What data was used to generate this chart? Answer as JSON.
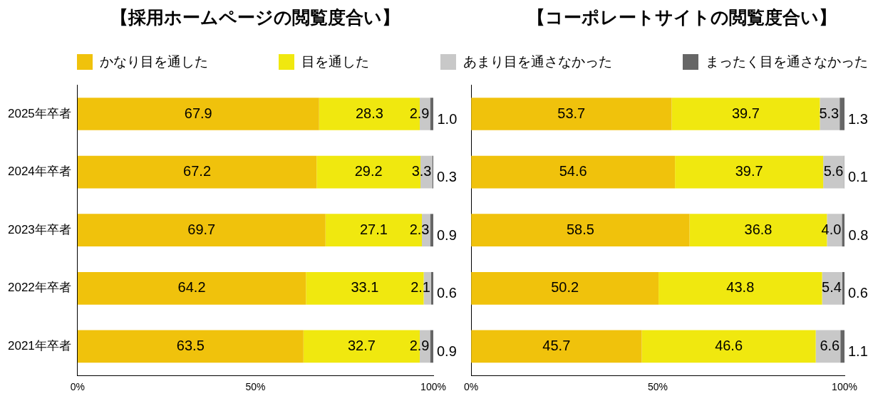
{
  "chart_data": [
    {
      "type": "bar",
      "orientation": "horizontal",
      "stacked": true,
      "title": "【採用ホームページの閲覧度合い】",
      "legend": "top",
      "grid": false,
      "categories": [
        "2025年卒者",
        "2024年卒者",
        "2023年卒者",
        "2022年卒者",
        "2021年卒者"
      ],
      "xlim": [
        0,
        100
      ],
      "xticks": [
        {
          "value": 0,
          "label": "0%"
        },
        {
          "value": 50,
          "label": "50%"
        },
        {
          "value": 100,
          "label": "100%"
        }
      ],
      "series": [
        {
          "name": "かなり目を通した",
          "color": "#f0c20c",
          "values": [
            67.9,
            67.2,
            69.7,
            64.2,
            63.5
          ],
          "value_labels": [
            "67.9",
            "67.2",
            "69.7",
            "64.2",
            "63.5"
          ]
        },
        {
          "name": "目を通した",
          "color": "#f0e80f",
          "values": [
            28.3,
            29.2,
            27.1,
            33.1,
            32.7
          ],
          "value_labels": [
            "28.3",
            "29.2",
            "27.1",
            "33.1",
            "32.7"
          ]
        },
        {
          "name": "あまり目を通さなかった",
          "color": "#c8c8c8",
          "values": [
            2.9,
            3.3,
            2.3,
            2.1,
            2.9
          ],
          "value_labels": [
            "2.9",
            "3.3",
            "2.3",
            "2.1",
            "2.9"
          ]
        },
        {
          "name": "まったく目を通さなかった",
          "color": "#666666",
          "values": [
            1.0,
            0.3,
            0.9,
            0.6,
            0.9
          ],
          "value_labels": [
            "1.0",
            "0.3",
            "0.9",
            "0.6",
            "0.9"
          ]
        }
      ]
    },
    {
      "type": "bar",
      "orientation": "horizontal",
      "stacked": true,
      "title": "【コーポレートサイトの閲覧度合い】",
      "grid": false,
      "categories": [
        null,
        null,
        null,
        null,
        null
      ],
      "xlim": [
        0,
        100
      ],
      "xticks": [
        {
          "value": 0,
          "label": "0%"
        },
        {
          "value": 50,
          "label": "50%"
        },
        {
          "value": 100,
          "label": "100%"
        }
      ],
      "series": [
        {
          "color": "#f0c20c",
          "values": [
            53.7,
            54.6,
            58.5,
            50.2,
            45.7
          ],
          "value_labels": [
            "53.7",
            "54.6",
            "58.5",
            "50.2",
            "45.7"
          ]
        },
        {
          "color": "#f0e80f",
          "values": [
            39.7,
            39.7,
            36.8,
            43.8,
            46.6
          ],
          "value_labels": [
            "39.7",
            "39.7",
            "36.8",
            "43.8",
            "46.6"
          ]
        },
        {
          "color": "#c8c8c8",
          "values": [
            5.3,
            5.6,
            4.0,
            5.4,
            6.6
          ],
          "value_labels": [
            "5.3",
            "5.6",
            "4.0",
            "5.4",
            "6.6"
          ]
        },
        {
          "color": "#666666",
          "values": [
            1.3,
            0.1,
            0.8,
            0.6,
            1.1
          ],
          "value_labels": [
            "1.3",
            "0.1",
            "0.8",
            "0.6",
            "1.1"
          ]
        }
      ]
    }
  ]
}
